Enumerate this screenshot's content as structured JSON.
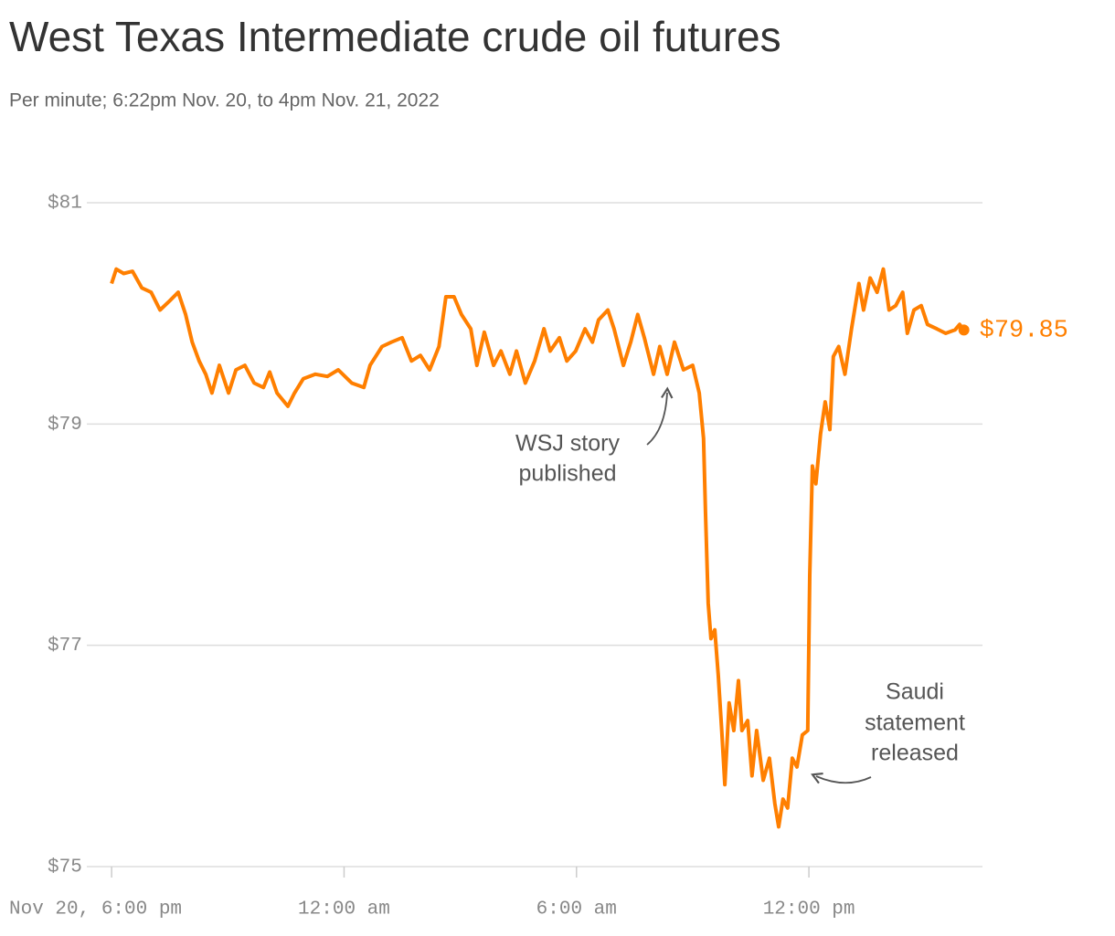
{
  "chart_data": {
    "type": "line",
    "title": "West Texas Intermediate crude oil futures",
    "subtitle": "Per minute; 6:22pm Nov. 20, to 4pm Nov. 21, 2022",
    "color": "#ff7f00",
    "grid": true,
    "xlim": [
      17.36,
      40.48
    ],
    "ylim": [
      75,
      81
    ],
    "yticks": [
      {
        "value": 75,
        "label": "$75"
      },
      {
        "value": 77,
        "label": "$77"
      },
      {
        "value": 79,
        "label": "$79"
      },
      {
        "value": 81,
        "label": "$81"
      }
    ],
    "xticks": [
      {
        "value": 18,
        "label": "Nov 20, 6:00 pm"
      },
      {
        "value": 24,
        "label": "12:00 am"
      },
      {
        "value": 30,
        "label": "6:00 am"
      },
      {
        "value": 36,
        "label": "12:00 pm"
      }
    ],
    "x": [
      18.0,
      18.12,
      18.31,
      18.54,
      18.78,
      19.02,
      19.25,
      19.49,
      19.72,
      19.91,
      20.08,
      20.26,
      20.43,
      20.59,
      20.78,
      21.02,
      21.21,
      21.44,
      21.68,
      21.92,
      22.08,
      22.27,
      22.55,
      22.72,
      22.95,
      23.26,
      23.57,
      23.85,
      24.2,
      24.51,
      24.67,
      24.98,
      25.22,
      25.5,
      25.74,
      25.97,
      26.21,
      26.45,
      26.63,
      26.84,
      27.03,
      27.27,
      27.43,
      27.62,
      27.86,
      28.05,
      28.28,
      28.45,
      28.68,
      28.92,
      29.16,
      29.32,
      29.56,
      29.75,
      29.98,
      30.22,
      30.41,
      30.57,
      30.81,
      30.97,
      31.21,
      31.4,
      31.58,
      31.75,
      31.99,
      32.15,
      32.34,
      32.53,
      32.76,
      33.0,
      33.17,
      33.28,
      33.33,
      33.4,
      33.47,
      33.57,
      33.66,
      33.75,
      33.83,
      33.94,
      34.06,
      34.18,
      34.27,
      34.42,
      34.53,
      34.65,
      34.82,
      34.98,
      35.12,
      35.22,
      35.33,
      35.45,
      35.57,
      35.69,
      35.83,
      35.97,
      36.02,
      36.09,
      36.18,
      36.3,
      36.42,
      36.54,
      36.63,
      36.77,
      36.93,
      37.1,
      37.29,
      37.41,
      37.58,
      37.76,
      37.92,
      38.07,
      38.24,
      38.42,
      38.54,
      38.71,
      38.9,
      39.06,
      39.3,
      39.53,
      39.77,
      39.89,
      40.0
    ],
    "series": [
      {
        "name": "WTI",
        "color": "#ff7f00",
        "values": [
          80.27,
          80.4,
          80.36,
          80.38,
          80.23,
          80.19,
          80.03,
          80.11,
          80.19,
          79.99,
          79.74,
          79.57,
          79.45,
          79.28,
          79.53,
          79.28,
          79.49,
          79.53,
          79.37,
          79.33,
          79.47,
          79.28,
          79.16,
          79.28,
          79.41,
          79.45,
          79.43,
          79.49,
          79.37,
          79.33,
          79.53,
          79.7,
          79.74,
          79.78,
          79.57,
          79.62,
          79.49,
          79.7,
          80.15,
          80.15,
          79.99,
          79.86,
          79.53,
          79.83,
          79.53,
          79.66,
          79.45,
          79.66,
          79.37,
          79.57,
          79.86,
          79.66,
          79.78,
          79.57,
          79.66,
          79.86,
          79.74,
          79.94,
          80.03,
          79.86,
          79.53,
          79.74,
          79.99,
          79.78,
          79.45,
          79.7,
          79.45,
          79.74,
          79.49,
          79.53,
          79.28,
          78.87,
          78.21,
          77.38,
          77.06,
          77.14,
          76.73,
          76.23,
          75.74,
          76.48,
          76.23,
          76.68,
          76.23,
          76.32,
          75.82,
          76.23,
          75.78,
          75.98,
          75.57,
          75.36,
          75.61,
          75.53,
          75.98,
          75.9,
          76.19,
          76.23,
          77.63,
          78.62,
          78.46,
          78.91,
          79.2,
          78.95,
          79.61,
          79.7,
          79.45,
          79.86,
          80.27,
          80.03,
          80.32,
          80.19,
          80.4,
          80.03,
          80.07,
          80.19,
          79.82,
          80.03,
          80.07,
          79.9,
          79.86,
          79.82,
          79.85,
          79.9,
          79.85
        ]
      }
    ],
    "last_value_label": "$79.85",
    "annotations": [
      {
        "lines": [
          "WSJ story",
          "published"
        ]
      },
      {
        "lines": [
          "Saudi",
          "statement",
          "released"
        ]
      }
    ]
  }
}
